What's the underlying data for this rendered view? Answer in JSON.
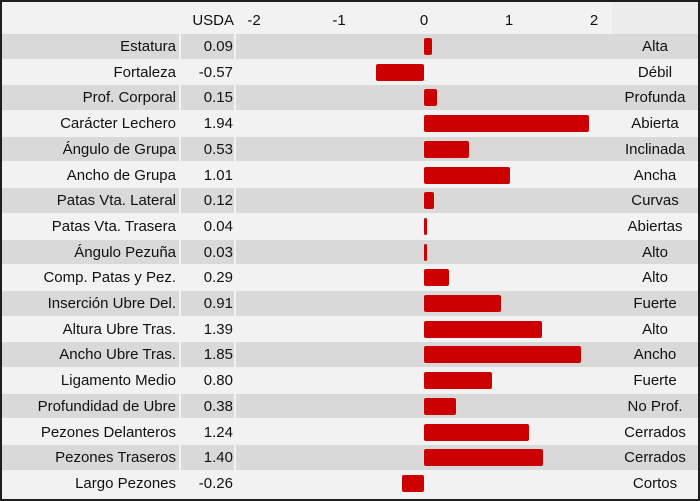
{
  "chart_data": {
    "type": "bar",
    "orientation": "horizontal",
    "value_header": "USDA",
    "xlim": [
      -2.2,
      2.2
    ],
    "x_ticks": [
      "-2",
      "-1",
      "0",
      "1",
      "2"
    ],
    "x_tick_values": [
      -2,
      -1,
      0,
      1,
      2
    ],
    "bar_color": "#cc0000",
    "rows": [
      {
        "trait": "Estatura",
        "value": "0.09",
        "v": 0.09,
        "label": "Alta"
      },
      {
        "trait": "Fortaleza",
        "value": "-0.57",
        "v": -0.57,
        "label": "Débil"
      },
      {
        "trait": "Prof. Corporal",
        "value": "0.15",
        "v": 0.15,
        "label": "Profunda"
      },
      {
        "trait": "Carácter Lechero",
        "value": "1.94",
        "v": 1.94,
        "label": "Abierta"
      },
      {
        "trait": "Ángulo de Grupa",
        "value": "0.53",
        "v": 0.53,
        "label": "Inclinada"
      },
      {
        "trait": "Ancho de Grupa",
        "value": "1.01",
        "v": 1.01,
        "label": "Ancha"
      },
      {
        "trait": "Patas Vta. Lateral",
        "value": "0.12",
        "v": 0.12,
        "label": "Curvas"
      },
      {
        "trait": "Patas Vta. Trasera",
        "value": "0.04",
        "v": 0.04,
        "label": "Abiertas"
      },
      {
        "trait": "Ángulo Pezuña",
        "value": "0.03",
        "v": 0.03,
        "label": "Alto"
      },
      {
        "trait": "Comp. Patas y Pez.",
        "value": "0.29",
        "v": 0.29,
        "label": "Alto"
      },
      {
        "trait": "Inserción Ubre Del.",
        "value": "0.91",
        "v": 0.91,
        "label": "Fuerte"
      },
      {
        "trait": "Altura Ubre Tras.",
        "value": "1.39",
        "v": 1.39,
        "label": "Alto"
      },
      {
        "trait": "Ancho Ubre Tras.",
        "value": "1.85",
        "v": 1.85,
        "label": "Ancho"
      },
      {
        "trait": "Ligamento Medio",
        "value": "0.80",
        "v": 0.8,
        "label": "Fuerte"
      },
      {
        "trait": "Profundidad de Ubre",
        "value": "0.38",
        "v": 0.38,
        "label": "No Prof."
      },
      {
        "trait": "Pezones Delanteros",
        "value": "1.24",
        "v": 1.24,
        "label": "Cerrados"
      },
      {
        "trait": "Pezones Traseros",
        "value": "1.40",
        "v": 1.4,
        "label": "Cerrados"
      },
      {
        "trait": "Largo Pezones",
        "value": "-0.26",
        "v": -0.26,
        "label": "Cortos"
      }
    ]
  }
}
